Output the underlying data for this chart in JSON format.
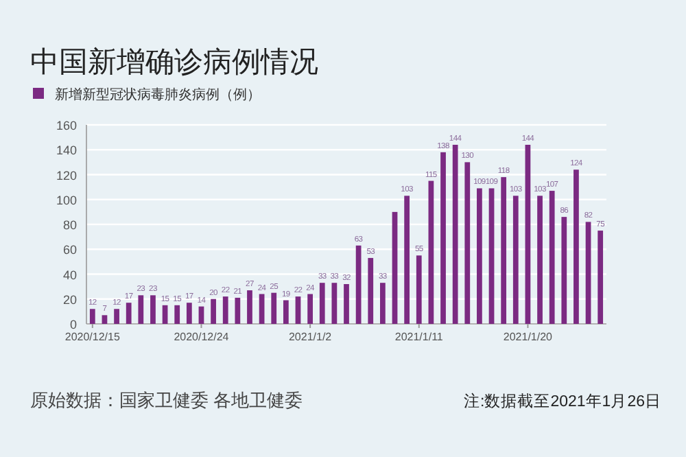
{
  "chart_data": {
    "type": "bar",
    "title": "中国新增确诊病例情况",
    "categories": [
      "2020/12/15",
      null,
      null,
      null,
      null,
      null,
      null,
      null,
      null,
      "2020/12/24",
      null,
      null,
      null,
      null,
      null,
      null,
      null,
      null,
      "2021/1/2",
      null,
      null,
      null,
      null,
      null,
      null,
      null,
      null,
      "2021/1/11",
      null,
      null,
      null,
      null,
      null,
      null,
      null,
      null,
      "2021/1/20",
      null,
      null,
      null,
      null,
      null,
      null
    ],
    "series": [
      {
        "name": "新增新型冠状病毒肺炎病例（例）",
        "color": "#7b2a82",
        "values": [
          12,
          7,
          12,
          17,
          23,
          23,
          15,
          15,
          17,
          14,
          20,
          22,
          21,
          27,
          24,
          25,
          19,
          22,
          24,
          33,
          33,
          32,
          63,
          53,
          33,
          90,
          103,
          55,
          115,
          138,
          144,
          130,
          109,
          109,
          118,
          103,
          144,
          103,
          107,
          86,
          124,
          82,
          75
        ],
        "value_labels": [
          "12",
          "7",
          "12",
          "17",
          "23",
          "23",
          "15",
          "15",
          "17",
          "14",
          "20",
          "22",
          "21",
          "27",
          "24",
          "25",
          "19",
          "22",
          "24",
          "33",
          "33",
          "32",
          "63",
          "53",
          "33",
          null,
          "103",
          "55",
          "115",
          "138",
          "144",
          "130",
          "109",
          "109",
          "118",
          "103",
          "144",
          "103",
          "107",
          "86",
          "124",
          "82",
          "75"
        ]
      }
    ],
    "ylim": [
      0,
      160
    ],
    "yticks": [
      0,
      20,
      40,
      60,
      80,
      100,
      120,
      140,
      160
    ],
    "grid": "y",
    "legend": "top left",
    "annotations": [
      "原始数据：国家卫健委 各地卫健委",
      "注:数据截至2021年1月26日"
    ]
  }
}
